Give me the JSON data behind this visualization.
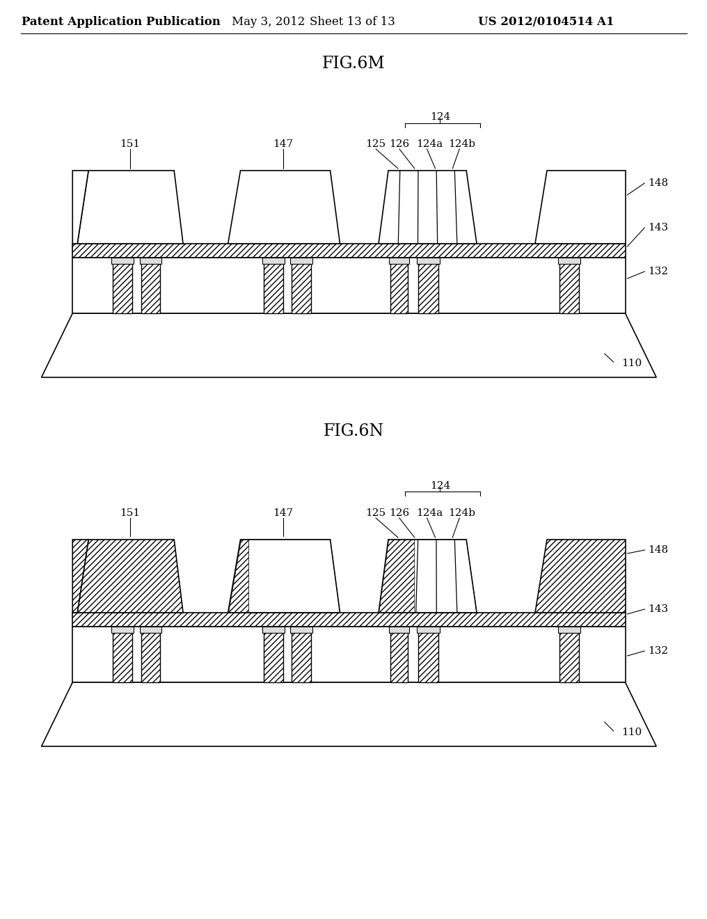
{
  "title_text": "Patent Application Publication",
  "date_text": "May 3, 2012",
  "sheet_text": "Sheet 13 of 13",
  "patent_text": "US 2012/0104514 A1",
  "fig1_label": "FIG.6M",
  "fig2_label": "FIG.6N",
  "bg_color": "#ffffff",
  "line_color": "#000000",
  "header_fontsize": 12,
  "fig_label_fontsize": 17,
  "annotation_fontsize": 11
}
